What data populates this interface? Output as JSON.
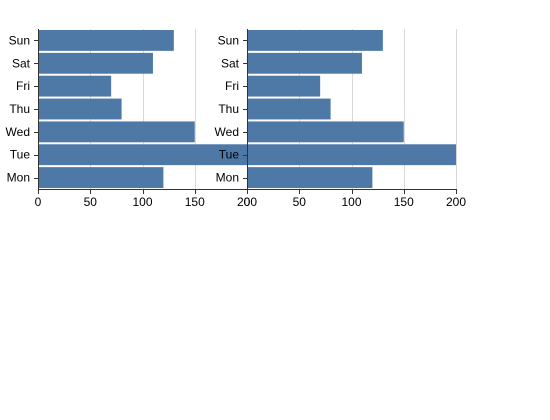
{
  "chart_data": [
    {
      "type": "bar",
      "orientation": "horizontal",
      "categories": [
        "Mon",
        "Tue",
        "Wed",
        "Thu",
        "Fri",
        "Sat",
        "Sun"
      ],
      "values": [
        120,
        200,
        150,
        80,
        70,
        110,
        130
      ],
      "xlim": [
        0,
        200
      ],
      "xticks": [
        0,
        50,
        100,
        150,
        200
      ],
      "grid": true,
      "bar_color": "#4e79a7"
    },
    {
      "type": "bar",
      "orientation": "horizontal",
      "categories": [
        "Mon",
        "Tue",
        "Wed",
        "Thu",
        "Fri",
        "Sat",
        "Sun"
      ],
      "values": [
        120,
        200,
        150,
        80,
        70,
        110,
        130
      ],
      "xlim": [
        0,
        200
      ],
      "xticks": [
        0,
        50,
        100,
        150,
        200
      ],
      "grid": true,
      "bar_color": "#4e79a7"
    }
  ]
}
